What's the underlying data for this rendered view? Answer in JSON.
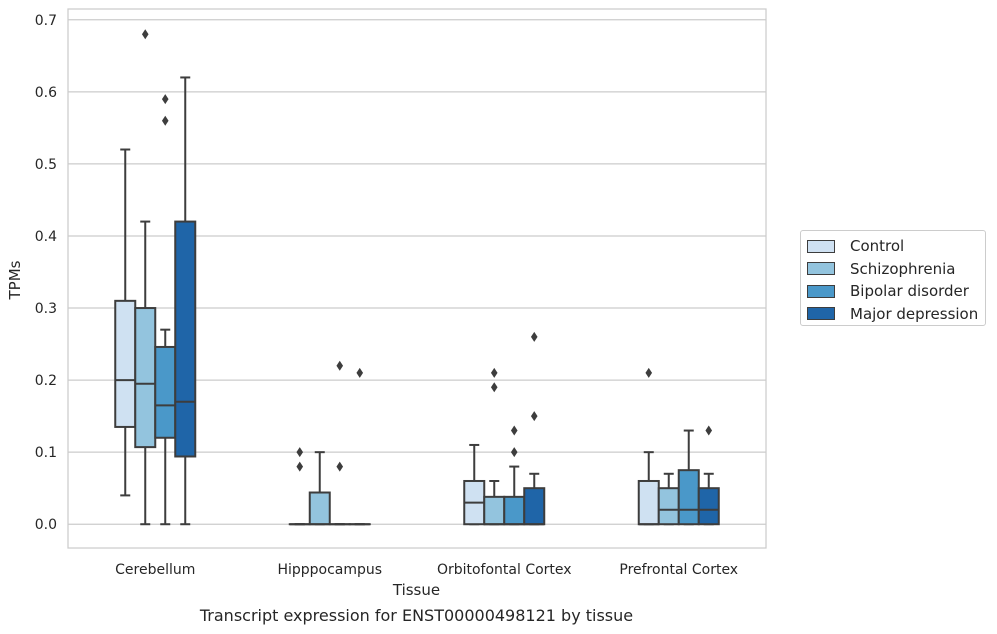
{
  "chart_data": {
    "type": "box",
    "ylabel": "TPMs",
    "xlabel": "Tissue",
    "caption": "Transcript expression for ENST00000498121 by tissue",
    "ylim": [
      -0.033,
      0.715
    ],
    "yticks": [
      0.0,
      0.1,
      0.2,
      0.3,
      0.4,
      0.5,
      0.6,
      0.7
    ],
    "ytick_labels": [
      "0.0",
      "0.1",
      "0.2",
      "0.3",
      "0.4",
      "0.5",
      "0.6",
      "0.7"
    ],
    "grid": true,
    "legend_position": "right",
    "categories": [
      "Cerebellum",
      "Hipppocampus",
      "Orbitofontal Cortex",
      "Prefrontal Cortex"
    ],
    "series": [
      {
        "name": "Control",
        "color": "#cfe1f2",
        "boxes": [
          {
            "whisker_low": 0.04,
            "q1": 0.135,
            "median": 0.2,
            "q3": 0.31,
            "whisker_high": 0.52,
            "outliers": []
          },
          {
            "whisker_low": 0.0,
            "q1": 0.0,
            "median": 0.0,
            "q3": 0.0,
            "whisker_high": 0.0,
            "outliers": [
              0.08,
              0.1
            ]
          },
          {
            "whisker_low": 0.0,
            "q1": 0.0,
            "median": 0.03,
            "q3": 0.06,
            "whisker_high": 0.11,
            "outliers": []
          },
          {
            "whisker_low": 0.0,
            "q1": 0.0,
            "median": 0.0,
            "q3": 0.06,
            "whisker_high": 0.1,
            "outliers": [
              0.21
            ]
          }
        ]
      },
      {
        "name": "Schizophrenia",
        "color": "#93c4de",
        "boxes": [
          {
            "whisker_low": 0.0,
            "q1": 0.107,
            "median": 0.195,
            "q3": 0.3,
            "whisker_high": 0.42,
            "outliers": [
              0.68
            ]
          },
          {
            "whisker_low": 0.0,
            "q1": 0.0,
            "median": 0.0,
            "q3": 0.044,
            "whisker_high": 0.1,
            "outliers": []
          },
          {
            "whisker_low": 0.0,
            "q1": 0.0,
            "median": 0.0,
            "q3": 0.038,
            "whisker_high": 0.06,
            "outliers": [
              0.19,
              0.21
            ]
          },
          {
            "whisker_low": 0.0,
            "q1": 0.0,
            "median": 0.02,
            "q3": 0.05,
            "whisker_high": 0.07,
            "outliers": []
          }
        ]
      },
      {
        "name": "Bipolar disorder",
        "color": "#4a98c9",
        "boxes": [
          {
            "whisker_low": 0.0,
            "q1": 0.12,
            "median": 0.165,
            "q3": 0.246,
            "whisker_high": 0.27,
            "outliers": [
              0.56,
              0.59
            ]
          },
          {
            "whisker_low": 0.0,
            "q1": 0.0,
            "median": 0.0,
            "q3": 0.0,
            "whisker_high": 0.0,
            "outliers": [
              0.08,
              0.22
            ]
          },
          {
            "whisker_low": 0.0,
            "q1": 0.0,
            "median": 0.0,
            "q3": 0.038,
            "whisker_high": 0.08,
            "outliers": [
              0.1,
              0.13
            ]
          },
          {
            "whisker_low": 0.0,
            "q1": 0.0,
            "median": 0.02,
            "q3": 0.075,
            "whisker_high": 0.13,
            "outliers": []
          }
        ]
      },
      {
        "name": "Major depression",
        "color": "#1f65a8",
        "boxes": [
          {
            "whisker_low": 0.0,
            "q1": 0.094,
            "median": 0.17,
            "q3": 0.42,
            "whisker_high": 0.62,
            "outliers": []
          },
          {
            "whisker_low": 0.0,
            "q1": 0.0,
            "median": 0.0,
            "q3": 0.0,
            "whisker_high": 0.0,
            "outliers": [
              0.21
            ]
          },
          {
            "whisker_low": 0.0,
            "q1": 0.0,
            "median": 0.0,
            "q3": 0.05,
            "whisker_high": 0.07,
            "outliers": [
              0.15,
              0.26
            ]
          },
          {
            "whisker_low": 0.0,
            "q1": 0.0,
            "median": 0.02,
            "q3": 0.05,
            "whisker_high": 0.07,
            "outliers": [
              0.13
            ]
          }
        ]
      }
    ]
  }
}
